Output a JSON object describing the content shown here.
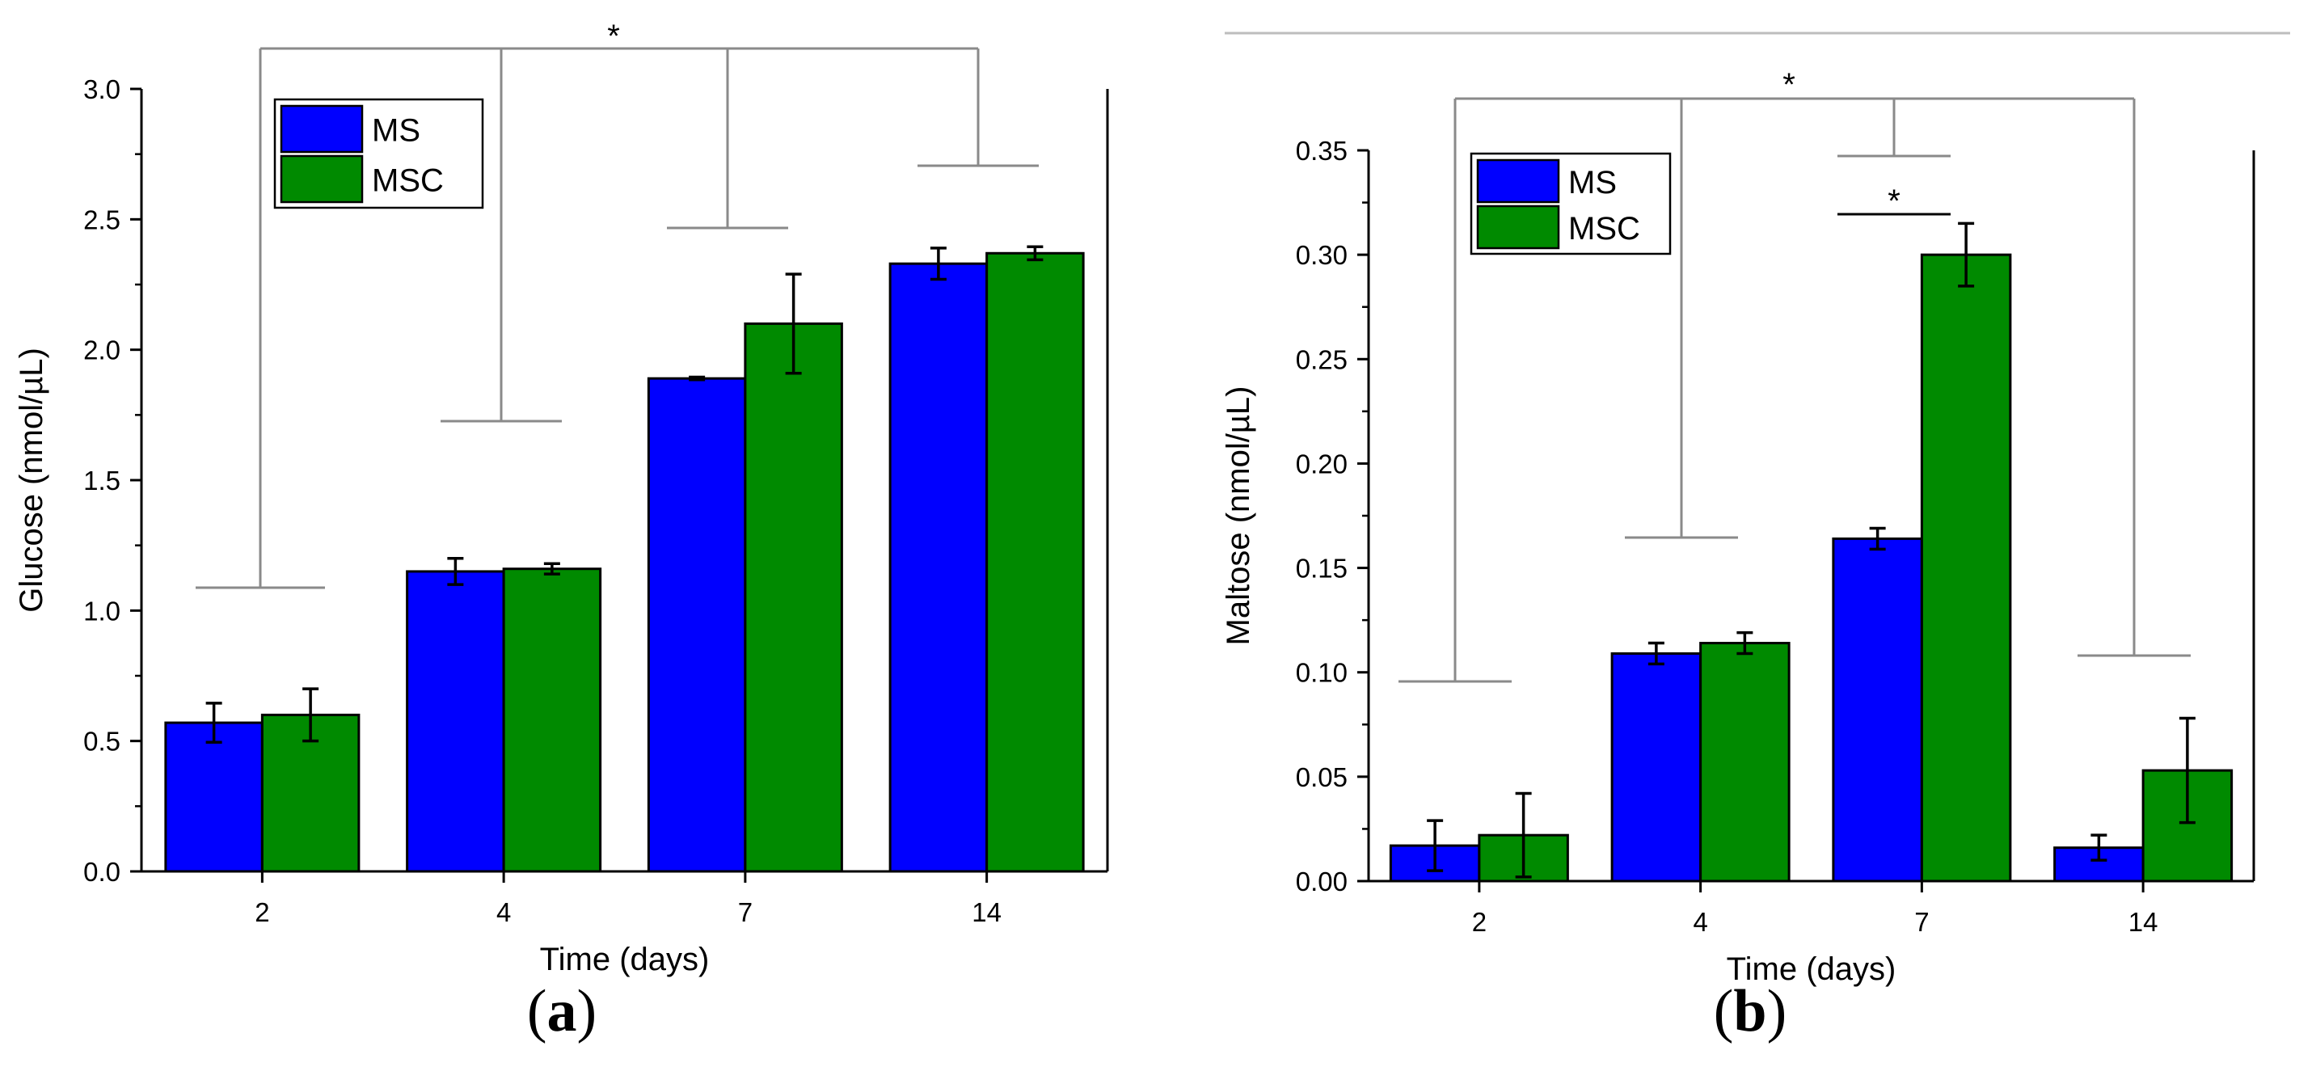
{
  "chart_data": [
    {
      "panel": "a",
      "type": "bar",
      "title": "",
      "xlabel": "Time (days)",
      "ylabel": "Glucose (nmol/µL)",
      "categories": [
        "2",
        "4",
        "7",
        "14"
      ],
      "ylim": [
        0,
        3.0
      ],
      "yticks": [
        0.0,
        0.5,
        1.0,
        1.5,
        2.0,
        2.5,
        3.0
      ],
      "ytick_labels": [
        "0.0",
        "0.5",
        "1.0",
        "1.5",
        "2.0",
        "2.5",
        "3.0"
      ],
      "series": [
        {
          "name": "MS",
          "color": "#0000ff",
          "values": [
            0.57,
            1.15,
            1.89,
            2.33
          ],
          "errors": [
            0.075,
            0.05,
            0.005,
            0.06
          ]
        },
        {
          "name": "MSC",
          "color": "#008a00",
          "values": [
            0.6,
            1.16,
            2.1,
            2.37
          ],
          "errors": [
            0.1,
            0.02,
            0.19,
            0.025
          ]
        }
      ],
      "legend": {
        "placement": "top-left",
        "entries": [
          "MS",
          "MSC"
        ]
      },
      "significance": [
        {
          "label": "*",
          "note": "bracket comparing 2, 4, 7 and 14 days"
        }
      ],
      "grid": false
    },
    {
      "panel": "b",
      "type": "bar",
      "title": "",
      "xlabel": "Time (days)",
      "ylabel": "Maltose (nmol/µL)",
      "categories": [
        "2",
        "4",
        "7",
        "14"
      ],
      "ylim": [
        0,
        0.35
      ],
      "yticks": [
        0.0,
        0.05,
        0.1,
        0.15,
        0.2,
        0.25,
        0.3,
        0.35
      ],
      "ytick_labels": [
        "0.00",
        "0.05",
        "0.10",
        "0.15",
        "0.20",
        "0.25",
        "0.30",
        "0.35"
      ],
      "series": [
        {
          "name": "MS",
          "color": "#0000ff",
          "values": [
            0.017,
            0.109,
            0.164,
            0.016
          ],
          "errors": [
            0.012,
            0.005,
            0.005,
            0.006
          ]
        },
        {
          "name": "MSC",
          "color": "#008a00",
          "values": [
            0.022,
            0.114,
            0.3,
            0.053
          ],
          "errors": [
            0.02,
            0.005,
            0.015,
            0.025
          ]
        }
      ],
      "legend": {
        "placement": "top-left",
        "entries": [
          "MS",
          "MSC"
        ]
      },
      "significance": [
        {
          "label": "*",
          "note": "bracket comparing 2, 4, 7 and 14 days"
        },
        {
          "label": "*",
          "note": "MS vs MSC at 7 days"
        }
      ],
      "grid": false
    }
  ],
  "panel_labels": {
    "a": {
      "open": "(",
      "letter": "a",
      "close": ")"
    },
    "b": {
      "open": "(",
      "letter": "b",
      "close": ")"
    }
  }
}
